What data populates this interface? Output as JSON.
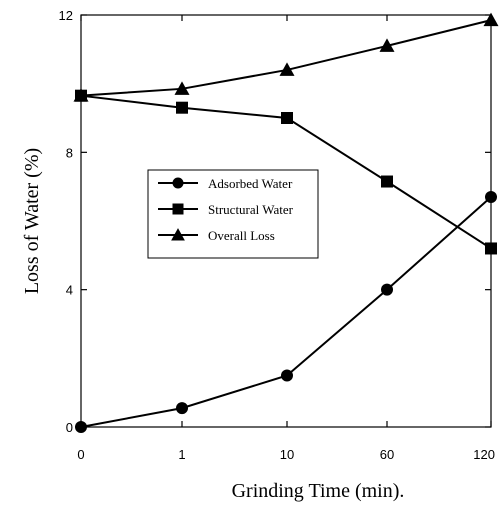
{
  "chart_data": {
    "type": "line",
    "categories": [
      "0",
      "1",
      "10",
      "60",
      "120"
    ],
    "xlabel": "Grinding Time (min).",
    "ylabel": "Loss of Water (%)",
    "ylim": [
      0,
      12
    ],
    "yticks": [
      "0",
      "4",
      "8",
      "12"
    ],
    "grid": false,
    "legend_position": "center-left",
    "series": [
      {
        "name": "Adsorbed Water",
        "marker": "circle",
        "values": [
          0.0,
          0.55,
          1.5,
          4.0,
          6.7
        ]
      },
      {
        "name": "Structural Water",
        "marker": "square",
        "values": [
          9.65,
          9.3,
          9.0,
          7.15,
          5.2
        ]
      },
      {
        "name": "Overall Loss",
        "marker": "triangle",
        "values": [
          9.65,
          9.85,
          10.4,
          11.1,
          11.85
        ]
      }
    ],
    "colors": {
      "line": "#000000",
      "background": "#ffffff"
    }
  }
}
